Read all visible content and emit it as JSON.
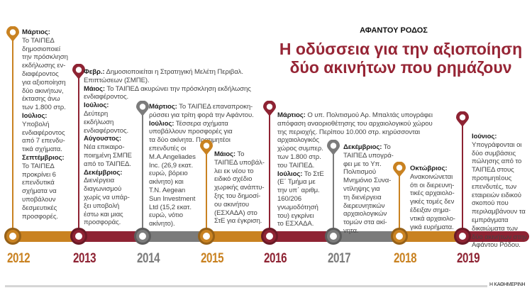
{
  "header": {
    "kicker": "ΑΦΑΝΤΟΥ ΡΟΔΟΣ",
    "title_line1": "Η οδύσσεια για την αξιοποίηση",
    "title_line2": "δύο ακινήτων που ρημάζουν"
  },
  "colors": {
    "orange": "#c98221",
    "red": "#8e2333",
    "gray": "#7b7b7b"
  },
  "source": "Η ΚΑΘΗΜΕΡΙΝΗ",
  "timeline": [
    {
      "year": "2012",
      "color": "orange",
      "lines": [
        {
          "b": "Μάρτιος:",
          "t": ""
        },
        {
          "t": "Το ΤΑΙΠΕΔ"
        },
        {
          "t": "δημοσιοποιεί"
        },
        {
          "t": "την πρόσκληση"
        },
        {
          "t": "εκδήλωσης εν-"
        },
        {
          "t": "διαφέροντος"
        },
        {
          "t": "για αξιοποίηση"
        },
        {
          "t": "δύο ακινήτων,"
        },
        {
          "t": "έκτασης άνω"
        },
        {
          "t": "των 1.800 στρ."
        },
        {
          "b": "Ιούλιος:",
          "t": ""
        },
        {
          "t": "Υποβολή"
        },
        {
          "t": "ενδιαφέροντος"
        },
        {
          "t": "από 7 επενδυ-"
        },
        {
          "t": "τικά σχήματα."
        },
        {
          "b": "Σεπτέμβριος:",
          "t": ""
        },
        {
          "t": "Το ΤΑΙΠΕΔ"
        },
        {
          "t": "προκρίνει 6"
        },
        {
          "t": "επενδυτικά"
        },
        {
          "t": "σχήματα να"
        },
        {
          "t": "υποβάλουν"
        },
        {
          "t": "δεσμευτικές"
        },
        {
          "t": "προσφορές."
        }
      ]
    },
    {
      "year": "2013",
      "color": "red",
      "lines": [
        {
          "b": "Φεβρ.:",
          "t": " Δημοσιοποιείται η Στρατηγική Μελέτη Περιβαλ."
        },
        {
          "t": "Επιπτώσεων (ΣΜΠΕ)."
        },
        {
          "b": "Μάιος:",
          "t": " Το ΤΑΙΠΕΔ ακυρώνει την πρόσκληση εκδήλωσης"
        },
        {
          "t": "ενδιαφέροντος."
        },
        {
          "b": "Ιούλιος:",
          "t": ""
        },
        {
          "t": "Δεύτερη"
        },
        {
          "t": "εκδήλωση"
        },
        {
          "t": "ενδιαφέροντος."
        },
        {
          "b": "Αύγουστος:",
          "t": ""
        },
        {
          "t": "Νέα επικαιρο-"
        },
        {
          "t": "ποιημένη ΣΜΠΕ"
        },
        {
          "t": "από το ΤΑΙΠΕΔ."
        },
        {
          "b": "Δεκέμβριος:",
          "t": ""
        },
        {
          "t": "Διενέργεια"
        },
        {
          "t": "διαγωνισμού"
        },
        {
          "t": "χωρίς να υπάρ-"
        },
        {
          "t": "ξει υποβολή"
        },
        {
          "t": "έστω και μιας"
        },
        {
          "t": "προσφοράς."
        }
      ]
    },
    {
      "year": "2014",
      "color": "gray",
      "lines": [
        {
          "b": "Μάρτιος:",
          "t": " Το ΤΑΙΠΕΔ επαναπροκη-"
        },
        {
          "t": "ρύσσει για τρίτη φορά την Αφάντου."
        },
        {
          "b": "Ιούλιος:",
          "t": " Τέσσερα σχήματα"
        },
        {
          "t": "υποβάλλουν προσφορές για"
        },
        {
          "t": "τα δύο ακίνητα. Προτιμητέοι"
        },
        {
          "t": "επενδυτές οι"
        },
        {
          "t": "M.A.Angeliades"
        },
        {
          "t": "Inc. (26,9 εκατ."
        },
        {
          "t": "ευρώ, βόρειο"
        },
        {
          "t": "ακίνητο) και"
        },
        {
          "t": "T.N. Aegean"
        },
        {
          "t": "Sun Investment"
        },
        {
          "t": "Ltd (15,2 εκατ."
        },
        {
          "t": "ευρώ, νότιο"
        },
        {
          "t": "ακίνητο)."
        }
      ]
    },
    {
      "year": "2015",
      "color": "orange",
      "lines": [
        {
          "b": "Μάιος:",
          "t": " Το"
        },
        {
          "t": "ΤΑΙΠΕΔ υποβάλ-"
        },
        {
          "t": "λει εκ νέου το"
        },
        {
          "t": "ειδικό σχέδιο"
        },
        {
          "t": "χωρικής ανάπτυ-"
        },
        {
          "t": "ξης του δημοσί-"
        },
        {
          "t": "ου ακινήτου"
        },
        {
          "t": "(ΕΣΧΑΔΑ) στο"
        },
        {
          "t": "ΣτΕ για έγκριση."
        }
      ]
    },
    {
      "year": "2016",
      "color": "red",
      "lines": [
        {
          "b": "Μάρτιος:",
          "t": " Ο υπ. Πολιτισμού Αρ. Μπαλτάς υπογράφει"
        },
        {
          "t": "απόφαση αναοριοθέτησης του αρχαιολογικού χώρου"
        },
        {
          "t": "της περιοχής. Περίπου 10.000 στρ. κηρύσσονται"
        },
        {
          "t": "αρχαιολογικός"
        },
        {
          "t": "χώρος συμπερ."
        },
        {
          "t": "των 1.800 στρ."
        },
        {
          "t": "του ΤΑΙΠΕΔ."
        },
        {
          "b": "Ιούλιος:",
          "t": " Το ΣτΕ"
        },
        {
          "t": "(Ε΄ Τμήμα με"
        },
        {
          "t": "την υπ΄ αριθμ."
        },
        {
          "t": "160/206"
        },
        {
          "t": "γνωμοδότησή"
        },
        {
          "t": "του) εγκρίνει"
        },
        {
          "t": "το ΕΣΧΑΔΑ."
        }
      ]
    },
    {
      "year": "2017",
      "color": "gray",
      "lines": [
        {
          "b": "Δεκέμβριος:",
          "t": " Το"
        },
        {
          "t": "ΤΑΙΠΕΔ υπογρά-"
        },
        {
          "t": "φει με το Υπ."
        },
        {
          "t": "Πολιτισμού"
        },
        {
          "t": "Μνημόνιο Συνα-"
        },
        {
          "t": "ντίληψης για"
        },
        {
          "t": "τη διενέργεια"
        },
        {
          "t": "διερευνητικών"
        },
        {
          "t": "αρχαιολογικών"
        },
        {
          "t": "τομών στα ακί-"
        },
        {
          "t": "νητα."
        }
      ]
    },
    {
      "year": "2018",
      "color": "orange",
      "lines": [
        {
          "b": "Οκτώβριος:",
          "t": ""
        },
        {
          "t": "Ανακοινώνεται"
        },
        {
          "t": "ότι οι διερευνη-"
        },
        {
          "t": "τικές αρχαιολο-"
        },
        {
          "t": "γικές τομές δεν"
        },
        {
          "t": "έδειξαν σημα-"
        },
        {
          "t": "ντικά αρχαιολο-"
        },
        {
          "t": "γικά ευρήματα."
        }
      ]
    },
    {
      "year": "2019",
      "color": "red",
      "lines": [
        {
          "b": "Ιούνιος:",
          "t": ""
        },
        {
          "t": "Υπογράφονται οι"
        },
        {
          "t": "δύο συμβάσεις"
        },
        {
          "t": "πώλησης από το"
        },
        {
          "t": "ΤΑΙΠΕΔ στους"
        },
        {
          "t": "προτιμητέους"
        },
        {
          "t": "επενδυτές, των"
        },
        {
          "t": "εταιρειών ειδικού"
        },
        {
          "t": "σκοπού που"
        },
        {
          "t": "περιλαμβάνουν τα"
        },
        {
          "t": "εμπράγματα"
        },
        {
          "t": "δικαιώματα των"
        },
        {
          "t": "δύο ακινήτων στην"
        },
        {
          "t": "Αφάντου Ρόδου."
        }
      ]
    }
  ]
}
